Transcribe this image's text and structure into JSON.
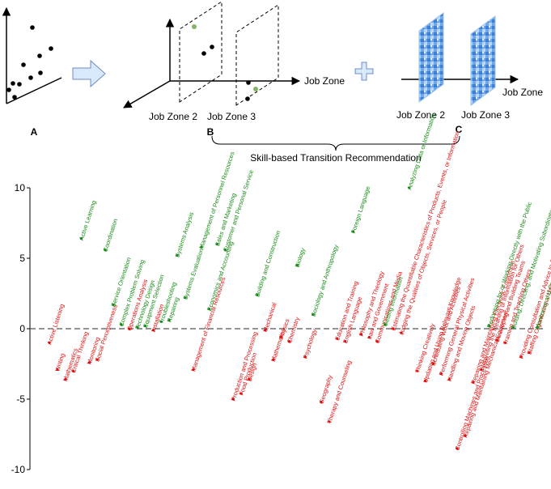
{
  "top": {
    "panel_a": "A",
    "panel_b": "B",
    "panel_c": "C",
    "axis_label": "Job Zone",
    "zone_2": "Job Zone 2",
    "zone_3": "Job Zone 3",
    "brace_label": "Skill-based Transition Recommendation",
    "colors": {
      "arrow_fill": "#dae8fc",
      "arrow_stroke": "#6c8ebf",
      "dot_green": "#82b366"
    }
  },
  "chart_data": {
    "type": "scatter",
    "ylim": [
      -10,
      10
    ],
    "yticks": [
      10,
      5,
      0,
      -5,
      -10
    ],
    "colors": {
      "positive": "#1a8a1a",
      "negative": "#e01010"
    },
    "points": [
      {
        "label": "Active Listening",
        "y": -1.0
      },
      {
        "label": "Writing",
        "y": -2.9
      },
      {
        "label": "Mathematics",
        "y": -3.6
      },
      {
        "label": "Critical Thinking",
        "y": -3.0
      },
      {
        "label": "Active Learning",
        "y": 6.4
      },
      {
        "label": "Monitoring",
        "y": -2.4
      },
      {
        "label": "Social Perceptiveness",
        "y": -2.2
      },
      {
        "label": "Coordination",
        "y": 5.6
      },
      {
        "label": "Service Orientation",
        "y": 1.7
      },
      {
        "label": "Complex Problem Solving",
        "y": 0.3
      },
      {
        "label": "Operations Analysis",
        "y": 0.0
      },
      {
        "label": "Technology Design",
        "y": 0.1
      },
      {
        "label": "Equipment Selection",
        "y": 0.2
      },
      {
        "label": "Installation",
        "y": -0.1
      },
      {
        "label": "Troubleshooting",
        "y": 0.5
      },
      {
        "label": "Repairing",
        "y": 0.6
      },
      {
        "label": "Systems Analysis",
        "y": 5.2
      },
      {
        "label": "Systems Evaluation",
        "y": 2.2
      },
      {
        "label": "Management of Financial Resources",
        "y": -2.9
      },
      {
        "label": "Management of Personnel Resources",
        "y": 5.8
      },
      {
        "label": "Economics and Accounting",
        "y": 1.4
      },
      {
        "label": "Sales and Marketing",
        "y": 6.0
      },
      {
        "label": "Customer and Personal Service",
        "y": 5.6
      },
      {
        "label": "Production and Processing",
        "y": -5.0
      },
      {
        "label": "Food Production",
        "y": -4.6
      },
      {
        "label": "Design",
        "y": -3.6
      },
      {
        "label": "Building and Construction",
        "y": 2.4
      },
      {
        "label": "Mechanical",
        "y": -0.1
      },
      {
        "label": "Mathematics",
        "y": -2.2
      },
      {
        "label": "Physics",
        "y": -0.6
      },
      {
        "label": "Chemistry",
        "y": -0.9
      },
      {
        "label": "Biology",
        "y": 4.5
      },
      {
        "label": "Psychology",
        "y": -2.0
      },
      {
        "label": "Sociology and Anthropology",
        "y": 1.0
      },
      {
        "label": "Geography",
        "y": -5.2
      },
      {
        "label": "Therapy and Counseling",
        "y": -6.6
      },
      {
        "label": "Education and Training",
        "y": -0.7
      },
      {
        "label": "English Language",
        "y": -0.9
      },
      {
        "label": "Foreign Language",
        "y": 6.9
      },
      {
        "label": "Philosophy and Theology",
        "y": -0.4
      },
      {
        "label": "Law and Government",
        "y": -0.6
      },
      {
        "label": "Communications and Media",
        "y": -0.9
      },
      {
        "label": "Getting Information",
        "y": 0.3
      },
      {
        "label": "Estimating the Quantifiable Characteristics of Products, Events, or Information",
        "y": 0.0
      },
      {
        "label": "Judging the Qualities of Objects, Services, or People",
        "y": -0.3
      },
      {
        "label": "Analyzing Data or Information",
        "y": 10.0
      },
      {
        "label": "Thinking Creatively",
        "y": -3.0
      },
      {
        "label": "Updating and Using Relevant Knowledge",
        "y": -3.7
      },
      {
        "label": "Scheduling Work and Activities",
        "y": -2.5
      },
      {
        "label": "Performing General Physical Activities",
        "y": -3.2
      },
      {
        "label": "Handling and Moving Objects",
        "y": -3.6
      },
      {
        "label": "Controlling Machines and Processes",
        "y": -8.5
      },
      {
        "label": "Repairing and Maintaining Mechanical Equipment",
        "y": -7.6
      },
      {
        "label": "Repairing and Maintaining Electronic Equipment",
        "y": -3.8
      },
      {
        "label": "Interpreting the Meaning of Information for Others",
        "y": -2.9
      },
      {
        "label": "Performing for or Working Directly with the Public",
        "y": 0.2
      },
      {
        "label": "Developing and Building Teams",
        "y": -0.8
      },
      {
        "label": "Training and Teaching Others",
        "y": -1.0
      },
      {
        "label": "Guiding, Directing, and Motivating Subordinates",
        "y": 0.1
      },
      {
        "label": "Providing Consultation and Advice to Others",
        "y": -2.0
      },
      {
        "label": "Staffing Organizational Units",
        "y": -1.7
      },
      {
        "label": "Monitoring and Controlling Resources",
        "y": 0.1
      }
    ]
  }
}
